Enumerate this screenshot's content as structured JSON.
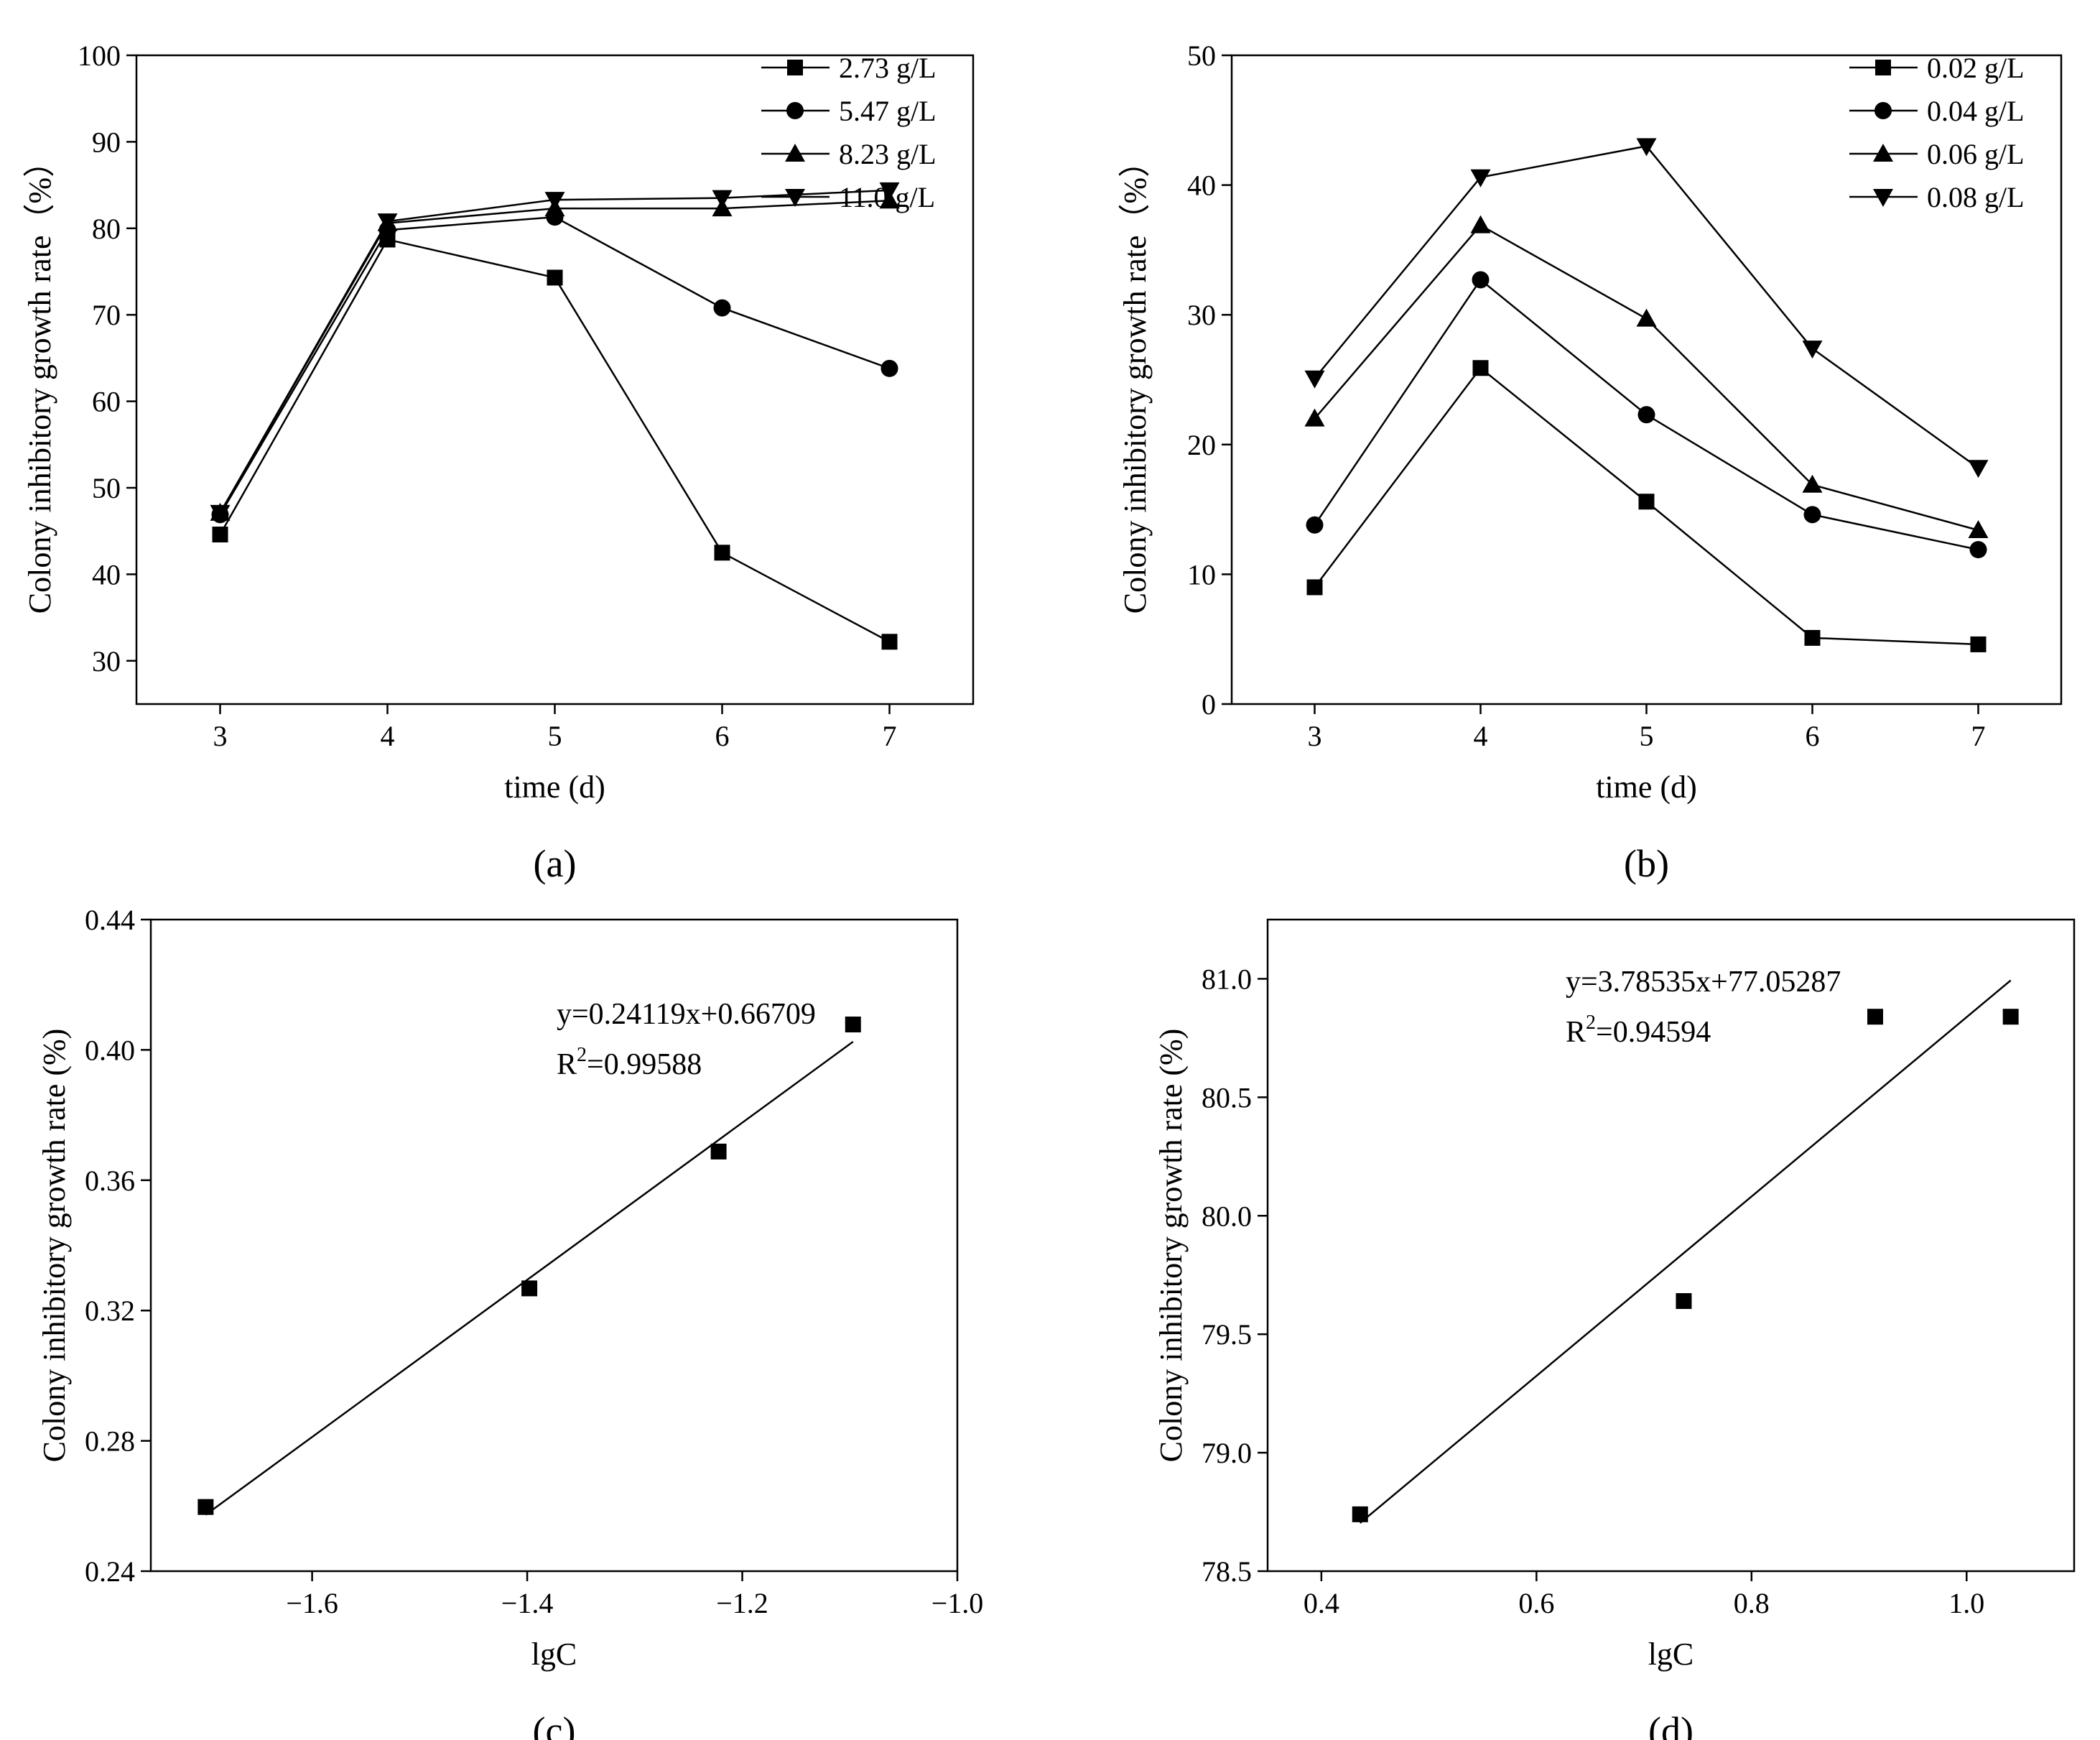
{
  "figure_title": "",
  "chart_data": [
    {
      "id": "a",
      "type": "line",
      "caption": "(a)",
      "xlabel": "time (d)",
      "ylabel": "Colony inhibitory growth rate（%）",
      "xlim": [
        2.5,
        7.5
      ],
      "ylim": [
        25,
        100
      ],
      "xticks": [
        3,
        4,
        5,
        6,
        7
      ],
      "yticks": [
        30,
        40,
        50,
        60,
        70,
        80,
        90,
        100
      ],
      "x": [
        3,
        4,
        5,
        6,
        7
      ],
      "legend_position": "top-right",
      "series": [
        {
          "name": "2.73 g/L",
          "marker": "square",
          "values": [
            44.6,
            78.7,
            74.3,
            42.5,
            32.2
          ]
        },
        {
          "name": "5.47 g/L",
          "marker": "circle",
          "values": [
            46.9,
            79.8,
            81.3,
            70.8,
            63.8
          ]
        },
        {
          "name": "8.23 g/L",
          "marker": "triangle-up",
          "values": [
            47.1,
            80.6,
            82.3,
            82.3,
            83.2
          ]
        },
        {
          "name": "11.0 g/L",
          "marker": "triangle-down",
          "values": [
            47.1,
            80.8,
            83.3,
            83.5,
            84.4
          ]
        }
      ]
    },
    {
      "id": "b",
      "type": "line",
      "caption": "(b)",
      "xlabel": "time (d)",
      "ylabel": "Colony inhibitory growth rate（%）",
      "xlim": [
        2.5,
        7.5
      ],
      "ylim": [
        0,
        50
      ],
      "xticks": [
        3,
        4,
        5,
        6,
        7
      ],
      "yticks": [
        0,
        10,
        20,
        30,
        40,
        50
      ],
      "x": [
        3,
        4,
        5,
        6,
        7
      ],
      "legend_position": "top-right",
      "series": [
        {
          "name": "0.02 g/L",
          "marker": "square",
          "values": [
            9.0,
            25.9,
            15.6,
            5.1,
            4.6
          ]
        },
        {
          "name": "0.04 g/L",
          "marker": "circle",
          "values": [
            13.8,
            32.7,
            22.3,
            14.6,
            11.9
          ]
        },
        {
          "name": "0.06 g/L",
          "marker": "triangle-up",
          "values": [
            22.0,
            36.9,
            29.7,
            16.9,
            13.4
          ]
        },
        {
          "name": "0.08 g/L",
          "marker": "triangle-down",
          "values": [
            25.1,
            40.6,
            43.0,
            27.4,
            18.2
          ]
        }
      ]
    },
    {
      "id": "c",
      "type": "scatter",
      "caption": "(c)",
      "xlabel": "lgC",
      "ylabel": "Colony inhibitory growth rate (%)",
      "xlim": [
        -1.75,
        -1.0
      ],
      "ylim": [
        0.24,
        0.44
      ],
      "xticks": [
        -1.6,
        -1.4,
        -1.2,
        -1.0
      ],
      "xtick_labels": [
        "−1.6",
        "−1.4",
        "−1.2",
        "−1.0"
      ],
      "yticks": [
        0.24,
        0.28,
        0.32,
        0.36,
        0.4,
        0.44
      ],
      "ytick_labels": [
        "0.24",
        "0.28",
        "0.32",
        "0.36",
        "0.40",
        "0.44"
      ],
      "points": {
        "x": [
          -1.699,
          -1.398,
          -1.222,
          -1.097
        ],
        "y": [
          0.2597,
          0.3268,
          0.3688,
          0.4078
        ]
      },
      "fit": {
        "slope": 0.24119,
        "intercept": 0.66709,
        "x_range": [
          -1.699,
          -1.097
        ]
      },
      "equation": "y=0.24119x+0.66709",
      "r2_label": "R",
      "r2_sup": "2",
      "r2_value": "=0.99588"
    },
    {
      "id": "d",
      "type": "scatter",
      "caption": "(d)",
      "xlabel": "lgC",
      "ylabel": "Colony inhibitory growth rate (%)",
      "xlim": [
        0.35,
        1.1
      ],
      "ylim": [
        78.5,
        81.25
      ],
      "xticks": [
        0.4,
        0.6,
        0.8,
        1.0
      ],
      "xtick_labels": [
        "0.4",
        "0.6",
        "0.8",
        "1.0"
      ],
      "yticks": [
        78.5,
        79.0,
        79.5,
        80.0,
        80.5,
        81.0
      ],
      "ytick_labels": [
        "78.5",
        "79.0",
        "79.5",
        "80.0",
        "80.5",
        "81.0"
      ],
      "points": {
        "x": [
          0.436,
          0.737,
          0.915,
          1.041
        ],
        "y": [
          78.74,
          79.64,
          80.84,
          80.84
        ]
      },
      "fit": {
        "slope": 3.78535,
        "intercept": 77.05287,
        "x_range": [
          0.436,
          1.041
        ]
      },
      "equation": "y=3.78535x+77.05287",
      "r2_label": "R",
      "r2_sup": "2",
      "r2_value": "=0.94594"
    }
  ]
}
